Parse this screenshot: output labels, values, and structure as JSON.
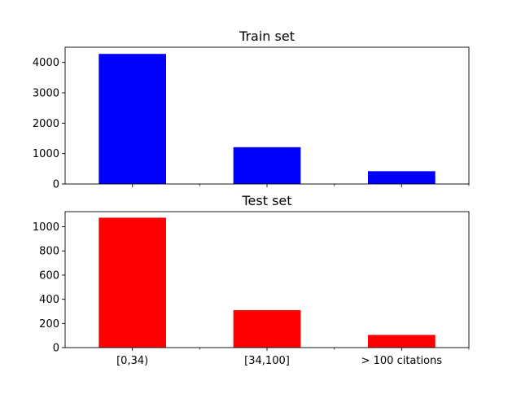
{
  "chart_data": [
    {
      "type": "bar",
      "title": "Train set",
      "categories": [
        "[0,34)",
        "[34,100]",
        "> 100 citations"
      ],
      "values": [
        4280,
        1210,
        420
      ],
      "ylim": [
        0,
        4500
      ],
      "yticks": [
        0,
        1000,
        2000,
        3000,
        4000
      ],
      "color": "#0000ff",
      "show_xticklabels": false
    },
    {
      "type": "bar",
      "title": "Test set",
      "categories": [
        "[0,34)",
        "[34,100]",
        "> 100 citations"
      ],
      "values": [
        1075,
        310,
        105
      ],
      "ylim": [
        0,
        1125
      ],
      "yticks": [
        0,
        200,
        400,
        600,
        800,
        1000
      ],
      "color": "#ff0000",
      "show_xticklabels": true
    }
  ]
}
